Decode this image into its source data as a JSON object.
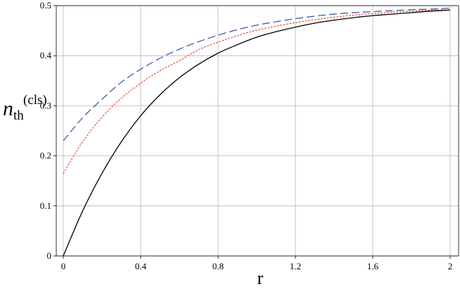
{
  "chart_data": {
    "type": "line",
    "title": "",
    "xlabel": "r",
    "ylabel": {
      "main": "n",
      "sub": "th",
      "sup": "(cls)"
    },
    "xlim": [
      0,
      2
    ],
    "ylim": [
      0,
      0.5
    ],
    "xticks": [
      0,
      0.4,
      0.8,
      1.2,
      1.6,
      2
    ],
    "xtick_labels": [
      "0",
      "0.4",
      "0.8",
      "1.2",
      "1.6",
      "2"
    ],
    "yticks": [
      0,
      0.1,
      0.2,
      0.3,
      0.4,
      0.5
    ],
    "ytick_labels": [
      "0",
      "0.1",
      "0.2",
      "0.3",
      "0.4",
      "0.5"
    ],
    "grid": true,
    "legend": false,
    "series": [
      {
        "style": "solid",
        "color": "#000000",
        "x": [
          0,
          0.1,
          0.2,
          0.3,
          0.4,
          0.5,
          0.6,
          0.7,
          0.8,
          0.9,
          1.0,
          1.1,
          1.2,
          1.3,
          1.4,
          1.5,
          1.6,
          1.7,
          1.8,
          1.9,
          2.0
        ],
        "y": [
          0,
          0.09,
          0.165,
          0.228,
          0.28,
          0.322,
          0.356,
          0.383,
          0.405,
          0.422,
          0.437,
          0.448,
          0.457,
          0.465,
          0.471,
          0.476,
          0.48,
          0.483,
          0.486,
          0.489,
          0.491
        ]
      },
      {
        "style": "dotted",
        "color": "#e8402a",
        "x": [
          0,
          0.1,
          0.2,
          0.3,
          0.4,
          0.5,
          0.6,
          0.7,
          0.8,
          0.9,
          1.0,
          1.1,
          1.2,
          1.3,
          1.4,
          1.5,
          1.6,
          1.7,
          1.8,
          1.9,
          2.0
        ],
        "y": [
          0.165,
          0.228,
          0.277,
          0.315,
          0.345,
          0.37,
          0.39,
          0.412,
          0.427,
          0.44,
          0.451,
          0.459,
          0.466,
          0.472,
          0.477,
          0.481,
          0.484,
          0.487,
          0.489,
          0.491,
          0.492
        ]
      },
      {
        "style": "dashed",
        "color": "#2a52a8",
        "x": [
          0,
          0.1,
          0.2,
          0.3,
          0.4,
          0.5,
          0.6,
          0.7,
          0.8,
          0.9,
          1.0,
          1.1,
          1.2,
          1.3,
          1.4,
          1.5,
          1.6,
          1.7,
          1.8,
          1.9,
          2.0
        ],
        "y": [
          0.23,
          0.276,
          0.313,
          0.347,
          0.373,
          0.395,
          0.413,
          0.428,
          0.441,
          0.452,
          0.461,
          0.468,
          0.474,
          0.479,
          0.483,
          0.486,
          0.488,
          0.49,
          0.492,
          0.493,
          0.495
        ]
      }
    ]
  }
}
